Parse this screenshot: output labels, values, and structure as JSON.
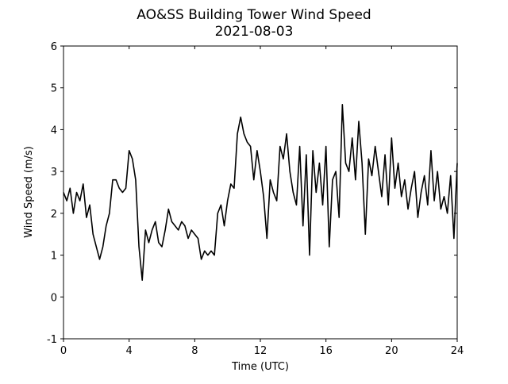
{
  "chart_data": {
    "type": "line",
    "title": "AO&SS Building Tower Wind Speed",
    "subtitle": "2021-08-03",
    "x_label": "Time (UTC)",
    "y_label": "Wind Speed (m/s)",
    "x": [
      0,
      0.2,
      0.4,
      0.6,
      0.8,
      1,
      1.2,
      1.4,
      1.6,
      1.8,
      2,
      2.2,
      2.4,
      2.6,
      2.8,
      3,
      3.2,
      3.4,
      3.6,
      3.8,
      4,
      4.2,
      4.4,
      4.6,
      4.8,
      5,
      5.2,
      5.4,
      5.6,
      5.8,
      6,
      6.2,
      6.4,
      6.6,
      6.8,
      7,
      7.2,
      7.4,
      7.6,
      7.8,
      8,
      8.2,
      8.4,
      8.6,
      8.8,
      9,
      9.2,
      9.4,
      9.6,
      9.8,
      10,
      10.2,
      10.4,
      10.6,
      10.8,
      11,
      11.2,
      11.4,
      11.6,
      11.8,
      12,
      12.2,
      12.4,
      12.6,
      12.8,
      13,
      13.2,
      13.4,
      13.6,
      13.8,
      14,
      14.2,
      14.4,
      14.6,
      14.8,
      15,
      15.2,
      15.4,
      15.6,
      15.8,
      16,
      16.2,
      16.4,
      16.6,
      16.8,
      17,
      17.2,
      17.4,
      17.6,
      17.8,
      18,
      18.2,
      18.4,
      18.6,
      18.8,
      19,
      19.2,
      19.4,
      19.6,
      19.8,
      20,
      20.2,
      20.4,
      20.6,
      20.8,
      21,
      21.2,
      21.4,
      21.6,
      21.8,
      22,
      22.2,
      22.4,
      22.6,
      22.8,
      23,
      23.2,
      23.4,
      23.6,
      23.8,
      24
    ],
    "series": [
      {
        "name": "Wind Speed",
        "color": "#000000",
        "values": [
          2.5,
          2.3,
          2.6,
          2.0,
          2.5,
          2.3,
          2.7,
          1.9,
          2.2,
          1.5,
          1.2,
          0.9,
          1.2,
          1.7,
          2.0,
          2.8,
          2.8,
          2.6,
          2.5,
          2.6,
          3.5,
          3.3,
          2.8,
          1.2,
          0.4,
          1.6,
          1.3,
          1.6,
          1.8,
          1.3,
          1.2,
          1.6,
          2.1,
          1.8,
          1.7,
          1.6,
          1.8,
          1.7,
          1.4,
          1.6,
          1.5,
          1.4,
          0.9,
          1.1,
          1.0,
          1.1,
          1.0,
          2.0,
          2.2,
          1.7,
          2.3,
          2.7,
          2.6,
          3.9,
          4.3,
          3.9,
          3.7,
          3.6,
          2.8,
          3.5,
          3.0,
          2.4,
          1.4,
          2.8,
          2.5,
          2.3,
          3.6,
          3.3,
          3.9,
          3.0,
          2.5,
          2.2,
          3.6,
          1.7,
          3.4,
          1.0,
          3.5,
          2.5,
          3.2,
          2.2,
          3.6,
          1.2,
          2.8,
          3.0,
          1.9,
          4.6,
          3.2,
          3.0,
          3.8,
          2.8,
          4.2,
          3.2,
          1.5,
          3.3,
          2.9,
          3.6,
          3.0,
          2.4,
          3.4,
          2.2,
          3.8,
          2.6,
          3.2,
          2.4,
          2.8,
          2.1,
          2.6,
          3.0,
          1.9,
          2.5,
          2.9,
          2.2,
          3.5,
          2.3,
          3.0,
          2.1,
          2.4,
          2.0,
          2.9,
          1.4,
          3.2
        ]
      }
    ],
    "xlim": [
      0,
      24
    ],
    "xticks": [
      0,
      4,
      8,
      12,
      16,
      20,
      24
    ],
    "ylim": [
      -1,
      6
    ],
    "yticks": [
      -1,
      0,
      1,
      2,
      3,
      4,
      5,
      6
    ]
  }
}
